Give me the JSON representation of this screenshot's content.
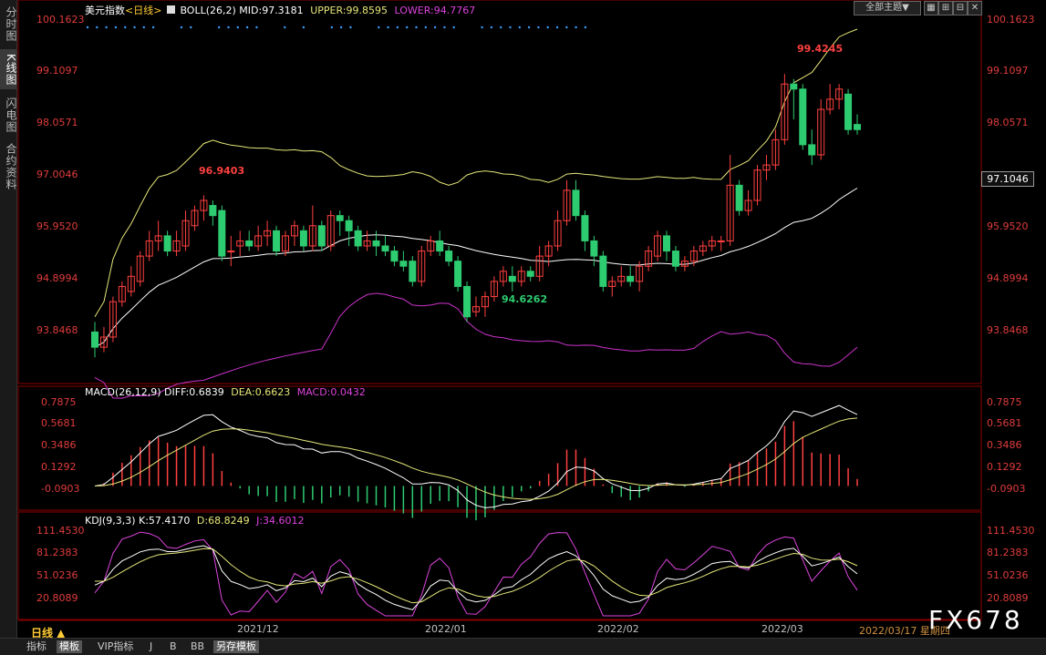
{
  "sidebar": {
    "tabs": [
      "分时图",
      "K线图",
      "闪电图",
      "合约资料"
    ],
    "active": 1
  },
  "toolbar": {
    "theme_label": "全部主题▼",
    "icons": [
      "grid-icon",
      "zoom-in-icon",
      "zoom-out-icon",
      "restore-icon",
      "close-icon"
    ]
  },
  "boll": {
    "instrument": "美元指数",
    "period_tag": "<日线>",
    "indicator": "BOLL(26,2)",
    "mid": "MID:97.3181",
    "upper": "UPPER:99.8595",
    "lower": "LOWER:94.7767"
  },
  "macd": {
    "name": "MACD(26,12,9)",
    "diff": "DIFF:0.6839",
    "dea": "DEA:0.6623",
    "macd": "MACD:0.0432"
  },
  "kdj": {
    "name": "KDJ(9,3,3)",
    "k": "K:57.4170",
    "d": "D:68.8249",
    "j": "J:34.6012"
  },
  "price_axis": [
    "100.1623",
    "99.1097",
    "98.0571",
    "97.0046",
    "95.9520",
    "94.8994",
    "93.8468"
  ],
  "current_price": "97.1046",
  "macd_axis": [
    "0.7875",
    "0.5681",
    "0.3486",
    "0.1292",
    "-0.0903"
  ],
  "kdj_axis": [
    "111.4530",
    "81.2383",
    "51.0236",
    "20.8089"
  ],
  "annotations": {
    "high1": "96.9403",
    "low": "94.6262",
    "high2": "99.4245"
  },
  "x_axis": [
    "2021/12",
    "2022/01",
    "2022/02",
    "2022/03"
  ],
  "date_label": "2022/03/17 星期四",
  "period_button": "日线 ▲",
  "bottom_tabs": [
    "指标",
    "模板",
    "VIP指标",
    "J",
    "B",
    "BB",
    "另存模板"
  ],
  "watermark": "FX678",
  "colors": {
    "up": "#ff4040",
    "down": "#2ecc71",
    "mid": "#ffffff",
    "upper": "#e6e67a",
    "lower": "#cc33cc",
    "axis": "#e03c3c"
  },
  "chart_data": {
    "type": "candlestick",
    "price_range": [
      93.3,
      100.5
    ],
    "candles": [
      [
        94.3,
        94.0,
        94.5,
        93.8
      ],
      [
        94.0,
        94.2,
        94.4,
        93.9
      ],
      [
        94.2,
        94.9,
        95.0,
        94.1
      ],
      [
        94.9,
        95.2,
        95.3,
        94.8
      ],
      [
        95.1,
        95.4,
        95.6,
        95.0
      ],
      [
        95.3,
        95.8,
        95.9,
        95.2
      ],
      [
        95.8,
        96.1,
        96.3,
        95.7
      ],
      [
        96.1,
        96.2,
        96.5,
        95.9
      ],
      [
        96.2,
        95.9,
        96.3,
        95.8
      ],
      [
        95.9,
        96.1,
        96.3,
        95.8
      ],
      [
        96.0,
        96.5,
        96.7,
        95.9
      ],
      [
        96.4,
        96.7,
        96.8,
        96.3
      ],
      [
        96.7,
        96.9,
        97.0,
        96.5
      ],
      [
        96.8,
        96.6,
        96.9,
        96.4
      ],
      [
        96.7,
        95.8,
        96.8,
        95.7
      ],
      [
        95.9,
        95.9,
        96.2,
        95.6
      ],
      [
        96.0,
        96.1,
        96.3,
        95.8
      ],
      [
        96.1,
        96.0,
        96.3,
        95.9
      ],
      [
        96.0,
        96.2,
        96.4,
        95.9
      ],
      [
        96.2,
        96.3,
        96.5,
        96.0
      ],
      [
        96.3,
        95.9,
        96.4,
        95.8
      ],
      [
        95.9,
        96.2,
        96.3,
        95.8
      ],
      [
        96.2,
        96.4,
        96.5,
        96.0
      ],
      [
        96.3,
        96.0,
        96.4,
        95.9
      ],
      [
        96.0,
        96.4,
        96.8,
        95.9
      ],
      [
        96.4,
        96.0,
        96.5,
        95.9
      ],
      [
        96.0,
        96.6,
        96.7,
        95.9
      ],
      [
        96.6,
        96.5,
        96.7,
        96.2
      ],
      [
        96.5,
        96.3,
        96.6,
        96.0
      ],
      [
        96.3,
        96.0,
        96.4,
        95.9
      ],
      [
        96.0,
        96.1,
        96.3,
        95.9
      ],
      [
        96.1,
        96.0,
        96.3,
        95.8
      ],
      [
        96.0,
        95.9,
        96.2,
        95.8
      ],
      [
        95.9,
        95.7,
        96.0,
        95.6
      ],
      [
        95.7,
        95.6,
        95.9,
        95.5
      ],
      [
        95.7,
        95.3,
        95.8,
        95.2
      ],
      [
        95.3,
        95.9,
        96.0,
        95.2
      ],
      [
        95.9,
        96.1,
        96.2,
        95.8
      ],
      [
        96.1,
        95.9,
        96.3,
        95.8
      ],
      [
        95.9,
        95.7,
        96.0,
        95.6
      ],
      [
        95.7,
        95.2,
        95.8,
        95.1
      ],
      [
        95.2,
        94.6,
        95.3,
        94.5
      ],
      [
        94.7,
        94.8,
        95.0,
        94.6
      ],
      [
        94.8,
        95.0,
        95.1,
        94.6
      ],
      [
        95.0,
        95.3,
        95.4,
        94.9
      ],
      [
        95.3,
        95.5,
        95.6,
        95.2
      ],
      [
        95.4,
        95.3,
        95.6,
        95.1
      ],
      [
        95.3,
        95.5,
        95.6,
        95.2
      ],
      [
        95.5,
        95.4,
        95.6,
        95.3
      ],
      [
        95.4,
        95.8,
        96.0,
        95.3
      ],
      [
        95.8,
        96.0,
        96.1,
        95.6
      ],
      [
        96.0,
        96.5,
        96.7,
        95.9
      ],
      [
        96.5,
        97.1,
        97.3,
        96.4
      ],
      [
        97.1,
        96.6,
        97.3,
        96.5
      ],
      [
        96.6,
        96.1,
        96.7,
        95.9
      ],
      [
        96.1,
        95.8,
        96.2,
        95.6
      ],
      [
        95.8,
        95.2,
        95.9,
        95.1
      ],
      [
        95.2,
        95.3,
        95.4,
        95.0
      ],
      [
        95.3,
        95.4,
        95.6,
        95.2
      ],
      [
        95.4,
        95.3,
        95.6,
        95.2
      ],
      [
        95.3,
        95.6,
        95.7,
        95.1
      ],
      [
        95.6,
        95.9,
        96.0,
        95.5
      ],
      [
        95.8,
        96.2,
        96.3,
        95.7
      ],
      [
        96.2,
        95.9,
        96.3,
        95.7
      ],
      [
        95.9,
        95.6,
        96.0,
        95.5
      ],
      [
        95.6,
        95.7,
        95.8,
        95.5
      ],
      [
        95.7,
        95.9,
        96.0,
        95.6
      ],
      [
        95.9,
        96.0,
        96.1,
        95.8
      ],
      [
        96.0,
        96.1,
        96.2,
        95.9
      ],
      [
        96.1,
        96.1,
        96.2,
        95.9
      ],
      [
        96.1,
        97.2,
        97.8,
        96.0
      ],
      [
        97.2,
        96.7,
        97.3,
        96.6
      ],
      [
        96.7,
        96.9,
        97.1,
        96.6
      ],
      [
        96.9,
        97.5,
        97.6,
        96.8
      ],
      [
        97.5,
        97.6,
        97.8,
        97.3
      ],
      [
        97.6,
        98.1,
        98.3,
        97.5
      ],
      [
        98.1,
        99.2,
        99.4,
        98.0
      ],
      [
        99.2,
        99.1,
        99.3,
        98.5
      ],
      [
        99.1,
        98.0,
        99.2,
        97.9
      ],
      [
        98.0,
        97.8,
        98.3,
        97.6
      ],
      [
        97.8,
        98.7,
        98.9,
        97.7
      ],
      [
        98.7,
        98.9,
        99.2,
        98.6
      ],
      [
        98.9,
        99.1,
        99.2,
        98.7
      ],
      [
        99.0,
        98.3,
        99.1,
        98.2
      ],
      [
        98.4,
        98.3,
        98.6,
        98.2
      ]
    ]
  }
}
